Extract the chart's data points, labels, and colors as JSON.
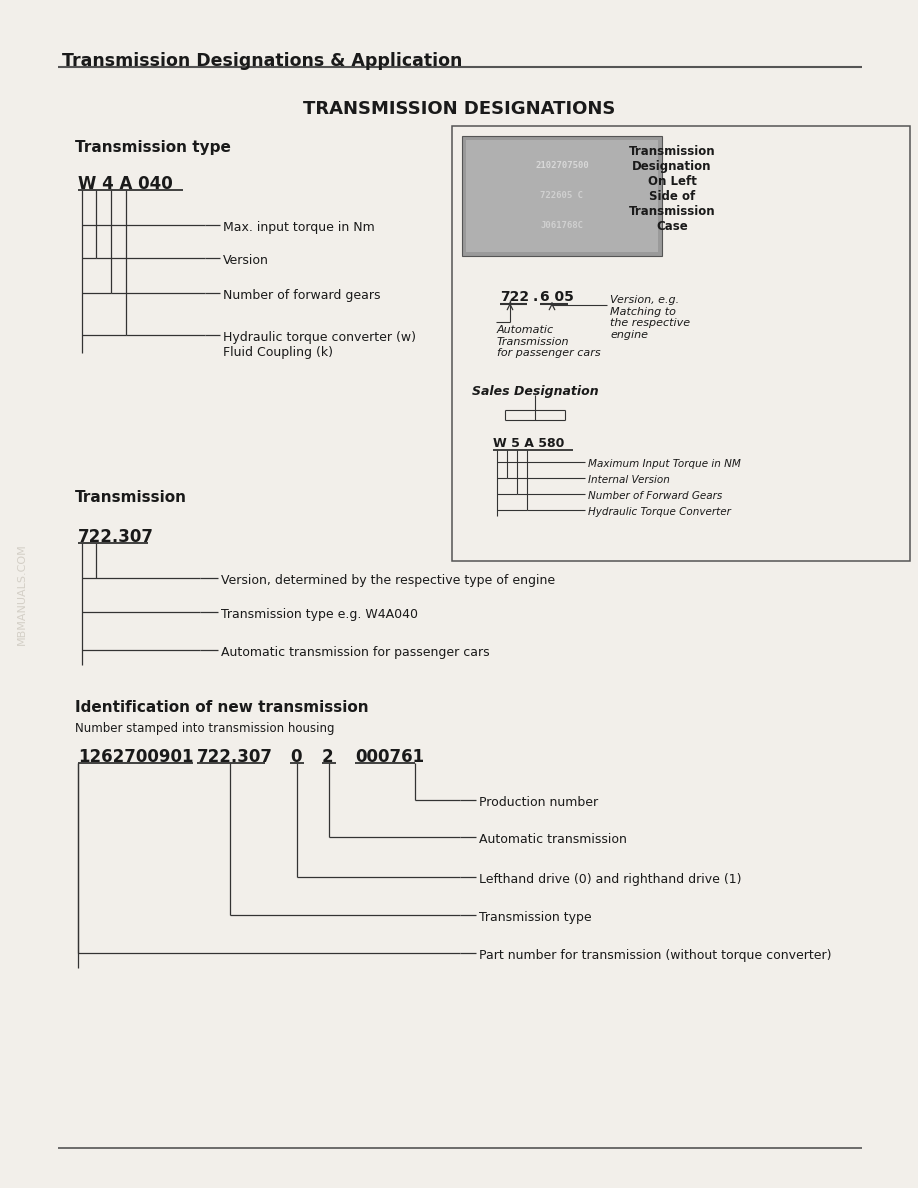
{
  "page_title": "Transmission Designations & Application",
  "main_title": "TRANSMISSION DESIGNATIONS",
  "bg_color": "#f2efea",
  "line_color": "#333333",
  "section1_header": "Transmission type",
  "section1_code": "W 4 A 040",
  "section1_labels": [
    "Max. input torque in Nm",
    "Version",
    "Number of forward gears",
    "Hydraulic torque converter (w)\nFluid Coupling (k)"
  ],
  "section2_header": "Transmission",
  "section2_code": "722.307",
  "section2_labels": [
    "Version, determined by the respective type of engine",
    "Transmission type e.g. W4A040",
    "Automatic transmission for passenger cars"
  ],
  "section3_header": "Identification of new transmission",
  "section3_subheader": "Number stamped into transmission housing",
  "section3_labels": [
    "Production number",
    "Automatic transmission",
    "Lefthand drive (0) and righthand drive (1)",
    "Transmission type",
    "Part number for transmission (without torque converter)"
  ],
  "box_right_text": "Transmission\nDesignation\nOn Left\nSide of\nTransmission\nCase",
  "plate_lines": [
    "2102707500",
    "722605 C",
    "J061768C"
  ],
  "diagram_code": "722.6 05",
  "diagram_label_left": "Automatic\nTransmission\nfor passenger cars",
  "diagram_label_right": "Version, e.g.\nMatching to\nthe respective\nengine",
  "sales_designation": "Sales Designation",
  "wsa_code": "W 5 A 580",
  "wsa_labels": [
    "Maximum Input Torque in NM",
    "Internal Version",
    "Number of Forward Gears",
    "Hydraulic Torque Converter"
  ],
  "watermark": "MBMANUALS.COM"
}
